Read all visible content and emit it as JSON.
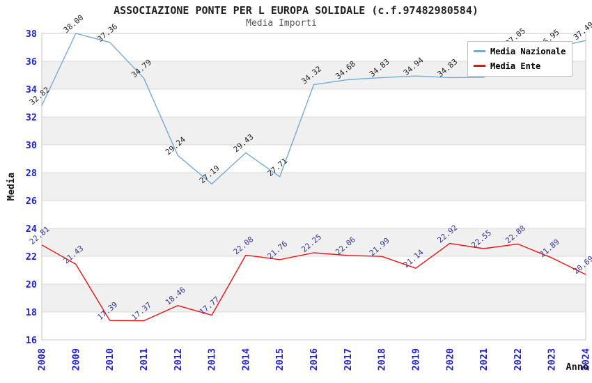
{
  "header": {
    "title": "ASSOCIAZIONE PONTE PER L EUROPA SOLIDALE (c.f.97482980584)",
    "subtitle": "Media Importi"
  },
  "legend": {
    "items": [
      {
        "label": "Media Nazionale",
        "color": "#74a9d8"
      },
      {
        "label": "Media Ente",
        "color": "#ee1111"
      }
    ]
  },
  "chart_data": {
    "type": "line",
    "title": "ASSOCIAZIONE PONTE PER L EUROPA SOLIDALE (c.f.97482980584)",
    "subtitle": "Media Importi",
    "xlabel": "Anno",
    "ylabel": "Media",
    "x": [
      "2008",
      "2009",
      "2010",
      "2011",
      "2012",
      "2013",
      "2014",
      "2015",
      "2016",
      "2017",
      "2018",
      "2019",
      "2020",
      "2021",
      "2022",
      "2023",
      "2024"
    ],
    "series": [
      {
        "name": "Media Nazionale",
        "color": "#74a9d8",
        "label_color": "#222222",
        "values": [
          32.82,
          38.0,
          37.36,
          34.79,
          29.24,
          27.19,
          29.43,
          27.71,
          34.32,
          34.68,
          34.83,
          34.94,
          34.83,
          34.85,
          37.05,
          36.95,
          37.49
        ]
      },
      {
        "name": "Media Ente",
        "color": "#ee1111",
        "label_color": "#333399",
        "values": [
          22.81,
          21.43,
          17.39,
          17.37,
          18.46,
          17.77,
          22.08,
          21.76,
          22.25,
          22.06,
          21.99,
          21.14,
          22.92,
          22.55,
          22.88,
          21.89,
          20.69
        ]
      }
    ],
    "ylim": [
      16,
      38
    ],
    "ytick_step": 2,
    "yticks": [
      16,
      18,
      20,
      22,
      24,
      26,
      28,
      30,
      32,
      34,
      36,
      38
    ],
    "grid": "horizontal",
    "band_fill": "#f0f0f0",
    "gridline_color": "#d9d9d9",
    "border_color": "#c6c6c6",
    "axis_tick_color": "#2222cc",
    "legend_position": "top-right"
  }
}
